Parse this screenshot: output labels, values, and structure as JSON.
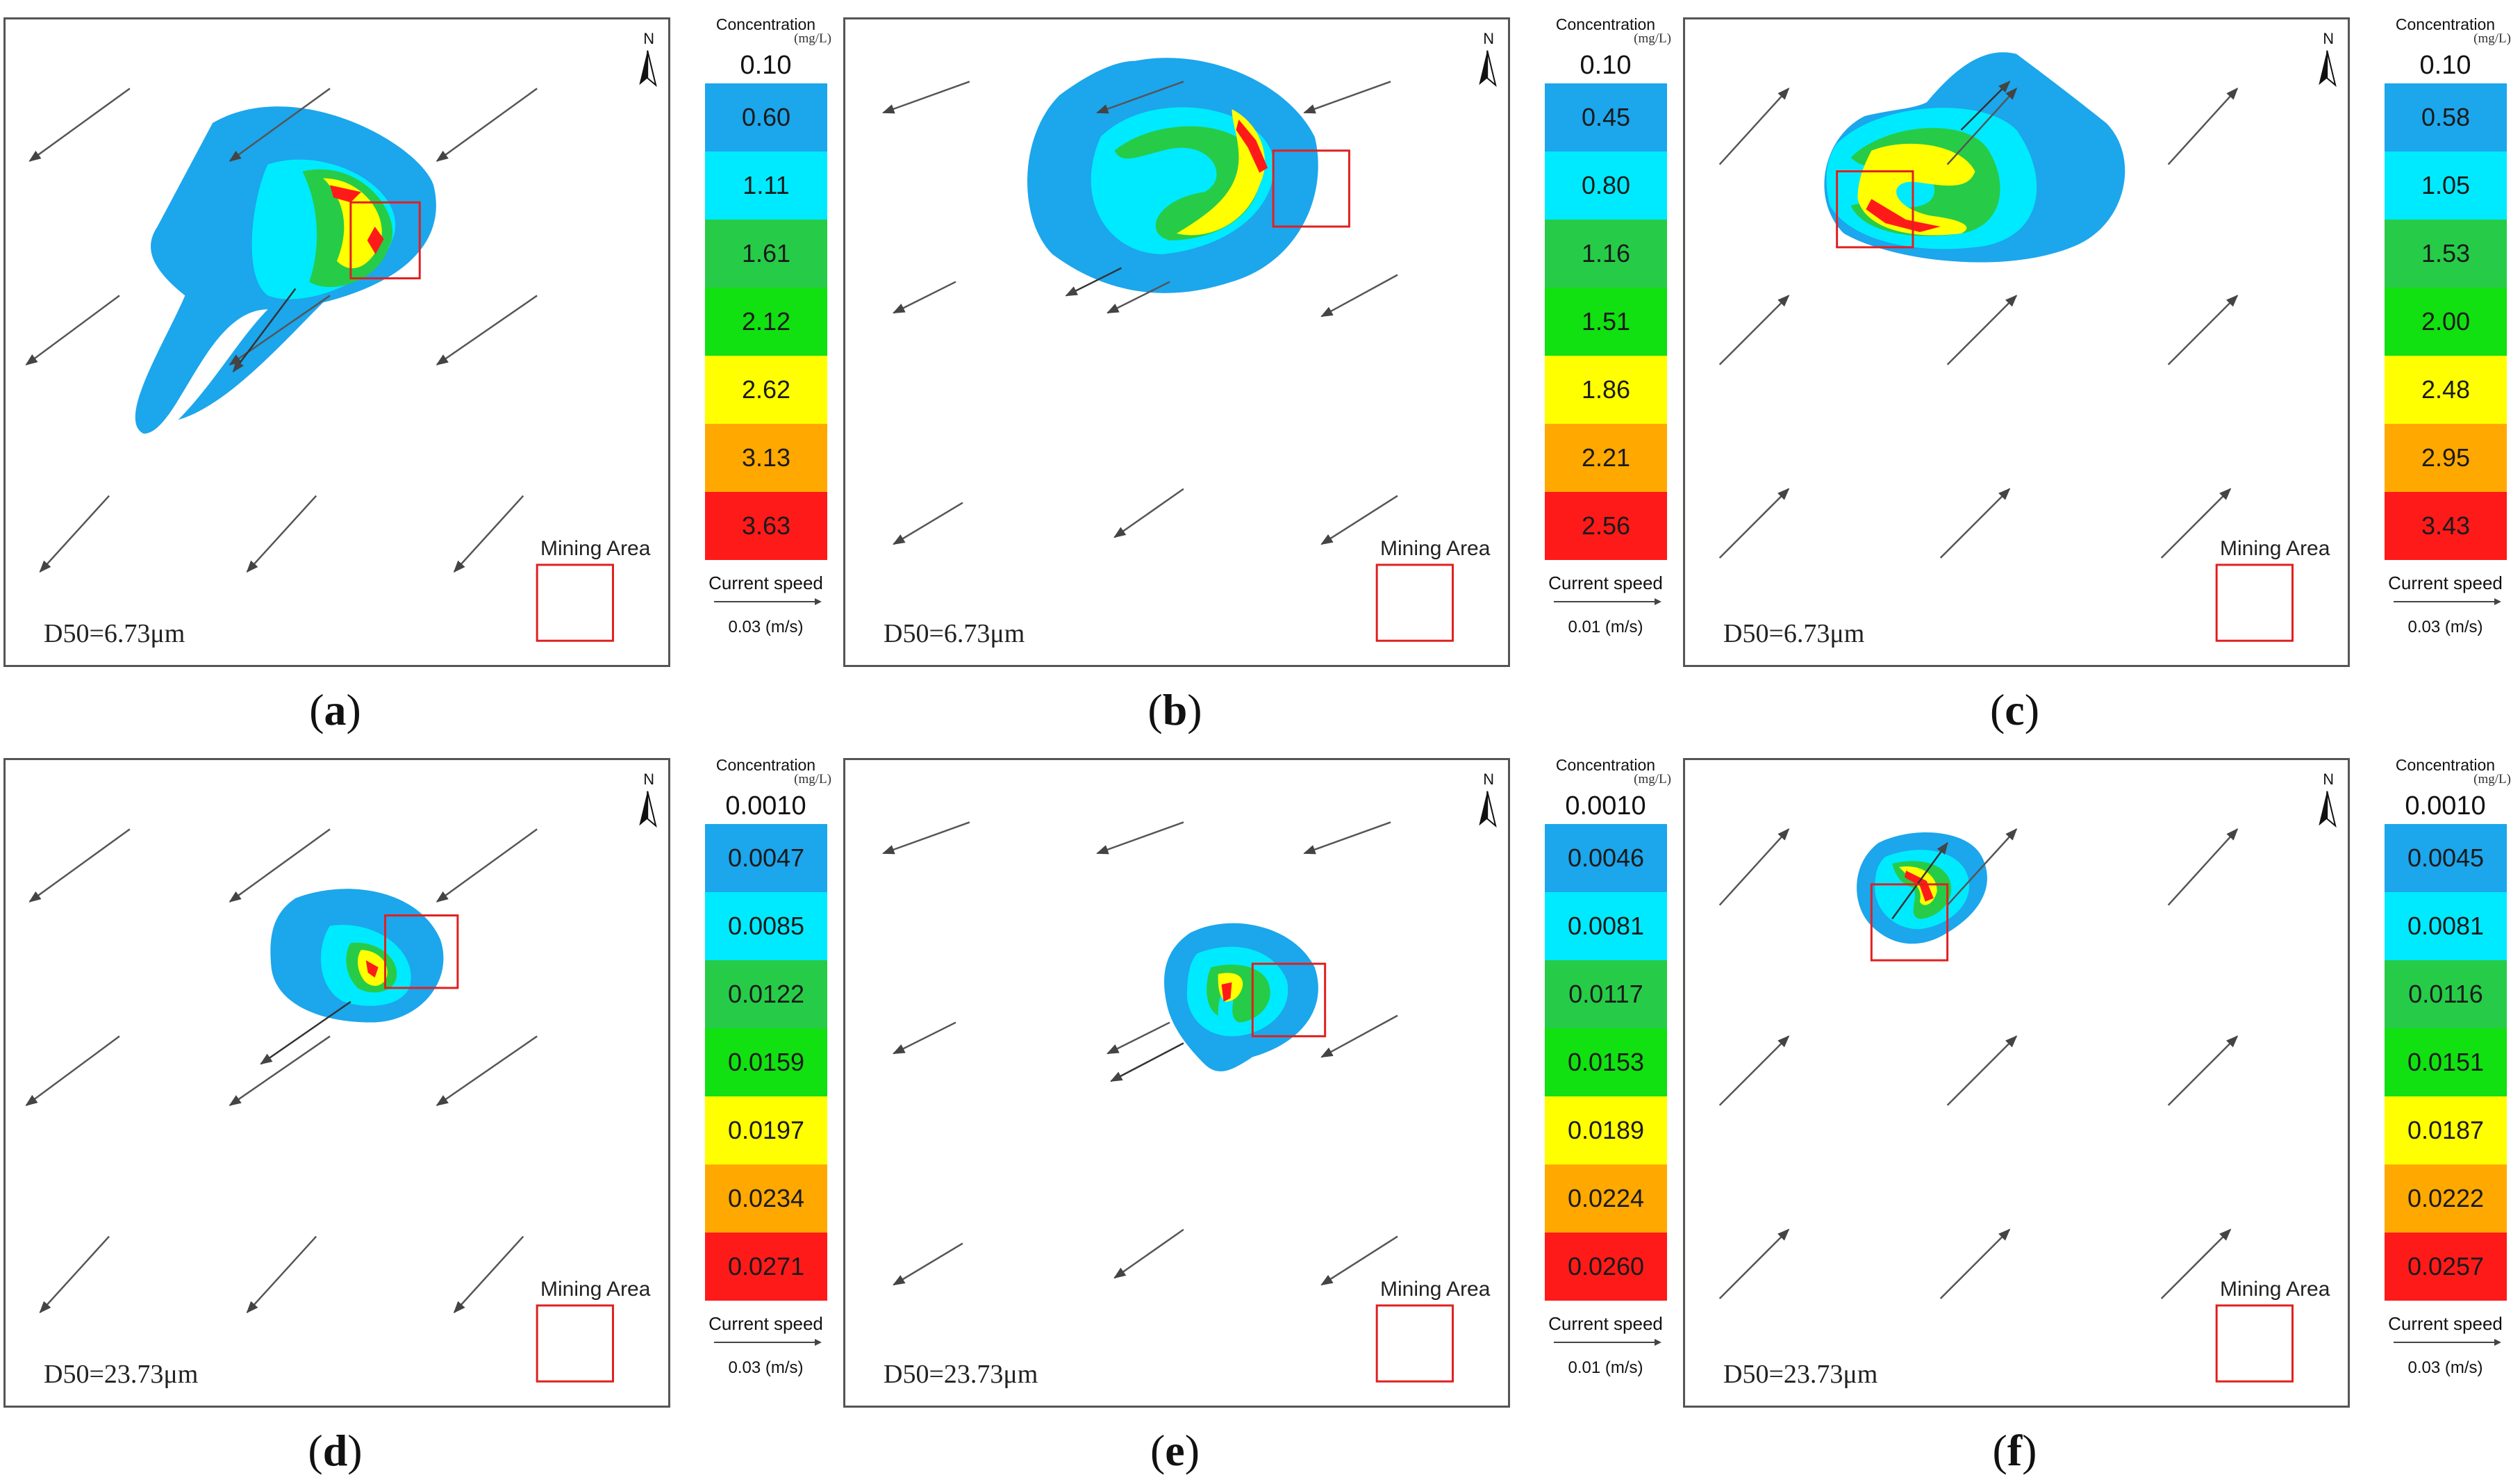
{
  "legend": {
    "title": "Concentration",
    "unit": "(mg/L)",
    "speed_label": "Current speed"
  },
  "colors": {
    "band_colors": [
      "#1ca6ec",
      "#00eaff",
      "#26cc47",
      "#11e011",
      "#ffff00",
      "#ffa800",
      "#ff1a1a"
    ],
    "mining_box": "#e02020",
    "arrow": "#555555"
  },
  "panels": [
    {
      "id": "a",
      "caption_letter": "a",
      "d50": "D50=6.73μm",
      "mining_label": "Mining Area",
      "north": "N",
      "speed": "0.03 (m/s)",
      "legend_top": "0.10",
      "legend_values": [
        "0.60",
        "1.11",
        "1.61",
        "2.12",
        "2.62",
        "3.13",
        "3.63"
      ],
      "current_direction": "southwest"
    },
    {
      "id": "b",
      "caption_letter": "b",
      "d50": "D50=6.73μm",
      "mining_label": "Mining Area",
      "north": "N",
      "speed": "0.01 (m/s)",
      "legend_top": "0.10",
      "legend_values": [
        "0.45",
        "0.80",
        "1.16",
        "1.51",
        "1.86",
        "2.21",
        "2.56"
      ],
      "current_direction": "west-southwest"
    },
    {
      "id": "c",
      "caption_letter": "c",
      "d50": "D50=6.73μm",
      "mining_label": "Mining Area",
      "north": "N",
      "speed": "0.03 (m/s)",
      "legend_top": "0.10",
      "legend_values": [
        "0.58",
        "1.05",
        "1.53",
        "2.00",
        "2.48",
        "2.95",
        "3.43"
      ],
      "current_direction": "northeast"
    },
    {
      "id": "d",
      "caption_letter": "d",
      "d50": "D50=23.73μm",
      "mining_label": "Mining Area",
      "north": "N",
      "speed": "0.03 (m/s)",
      "legend_top": "0.0010",
      "legend_values": [
        "0.0047",
        "0.0085",
        "0.0122",
        "0.0159",
        "0.0197",
        "0.0234",
        "0.0271"
      ],
      "current_direction": "southwest"
    },
    {
      "id": "e",
      "caption_letter": "e",
      "d50": "D50=23.73μm",
      "mining_label": "Mining Area",
      "north": "N",
      "speed": "0.01 (m/s)",
      "legend_top": "0.0010",
      "legend_values": [
        "0.0046",
        "0.0081",
        "0.0117",
        "0.0153",
        "0.0189",
        "0.0224",
        "0.0260"
      ],
      "current_direction": "west-southwest"
    },
    {
      "id": "f",
      "caption_letter": "f",
      "d50": "D50=23.73μm",
      "mining_label": "Mining Area",
      "north": "N",
      "speed": "0.03 (m/s)",
      "legend_top": "0.0010",
      "legend_values": [
        "0.0045",
        "0.0081",
        "0.0116",
        "0.0151",
        "0.0187",
        "0.0222",
        "0.0257"
      ],
      "current_direction": "northeast"
    }
  ]
}
